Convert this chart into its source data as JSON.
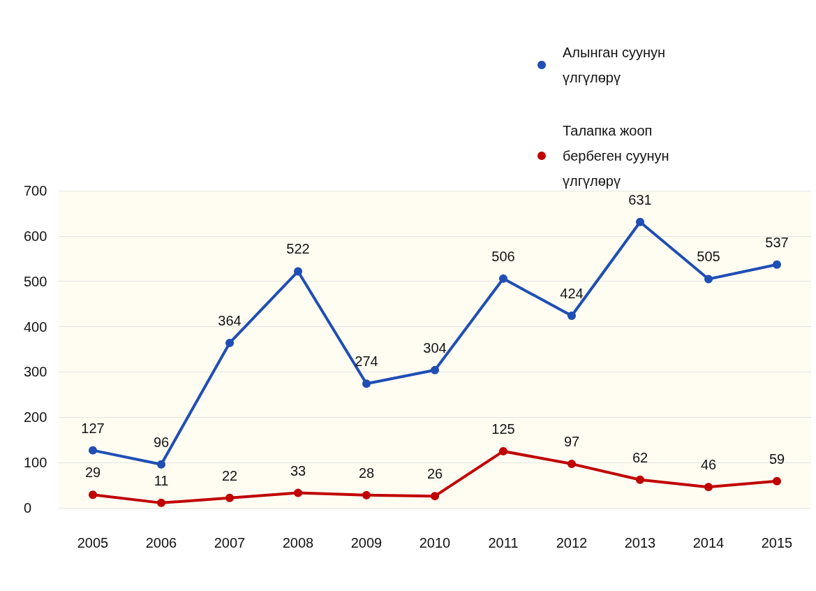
{
  "chart_data": {
    "type": "line",
    "categories": [
      "2005",
      "2006",
      "2007",
      "2008",
      "2009",
      "2010",
      "2011",
      "2012",
      "2013",
      "2014",
      "2015"
    ],
    "series": [
      {
        "name": "Алынган суунун үлгүлөрү",
        "color": "#1f4eb4",
        "values": [
          127,
          96,
          364,
          522,
          274,
          304,
          506,
          424,
          631,
          505,
          537
        ]
      },
      {
        "name": "Талапка жооп бербеген суунун үлгүлөрү",
        "color": "#c00000",
        "values": [
          29,
          11,
          22,
          33,
          28,
          26,
          125,
          97,
          62,
          46,
          59
        ]
      }
    ],
    "ylim": [
      0,
      700
    ],
    "yticks": [
      0,
      100,
      200,
      300,
      400,
      500,
      600,
      700
    ],
    "grid": "y",
    "legend": "top right",
    "marker": "circle",
    "line_style": "solid",
    "data_labels": true
  }
}
